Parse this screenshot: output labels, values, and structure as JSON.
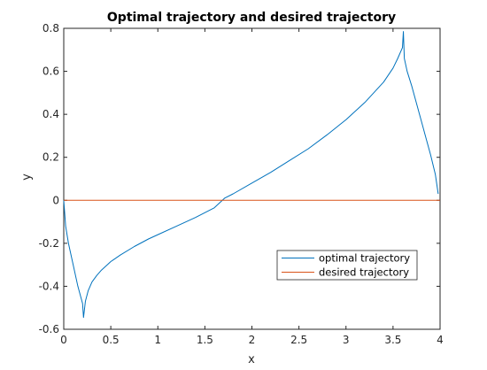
{
  "chart_data": {
    "type": "line",
    "title": "Optimal trajectory and desired trajectory",
    "xlabel": "x",
    "ylabel": "y",
    "xlim": [
      0,
      4
    ],
    "ylim": [
      -0.6,
      0.8
    ],
    "xticks": [
      0,
      0.5,
      1,
      1.5,
      2,
      2.5,
      3,
      3.5,
      4
    ],
    "xtick_labels": [
      "0",
      "0.5",
      "1",
      "1.5",
      "2",
      "2.5",
      "3",
      "3.5",
      "4"
    ],
    "yticks": [
      -0.6,
      -0.4,
      -0.2,
      0,
      0.2,
      0.4,
      0.6,
      0.8
    ],
    "ytick_labels": [
      "-0.6",
      "-0.4",
      "-0.2",
      "0",
      "0.2",
      "0.4",
      "0.6",
      "0.8"
    ],
    "grid": false,
    "legend_position": "lower-right inside",
    "series": [
      {
        "name": "optimal trajectory",
        "color": "#0072BD",
        "x": [
          0,
          0.02,
          0.05,
          0.1,
          0.15,
          0.2,
          0.21,
          0.23,
          0.26,
          0.3,
          0.35,
          0.4,
          0.5,
          0.6,
          0.75,
          0.9,
          1.0,
          1.2,
          1.4,
          1.6,
          1.71,
          1.8,
          2.0,
          2.2,
          2.4,
          2.6,
          2.8,
          3.0,
          3.2,
          3.4,
          3.5,
          3.55,
          3.6,
          3.61,
          3.62,
          3.65,
          3.7,
          3.75,
          3.8,
          3.85,
          3.9,
          3.95,
          3.98
        ],
        "y": [
          0,
          -0.12,
          -0.2,
          -0.3,
          -0.4,
          -0.48,
          -0.545,
          -0.47,
          -0.42,
          -0.38,
          -0.35,
          -0.325,
          -0.285,
          -0.255,
          -0.215,
          -0.18,
          -0.16,
          -0.12,
          -0.08,
          -0.035,
          0.01,
          0.03,
          0.08,
          0.13,
          0.185,
          0.24,
          0.305,
          0.375,
          0.455,
          0.55,
          0.615,
          0.66,
          0.71,
          0.785,
          0.66,
          0.6,
          0.53,
          0.45,
          0.37,
          0.29,
          0.21,
          0.12,
          0.03
        ]
      },
      {
        "name": "desired trajectory",
        "color": "#D95319",
        "x": [
          0,
          4
        ],
        "y": [
          0,
          0
        ]
      }
    ]
  }
}
